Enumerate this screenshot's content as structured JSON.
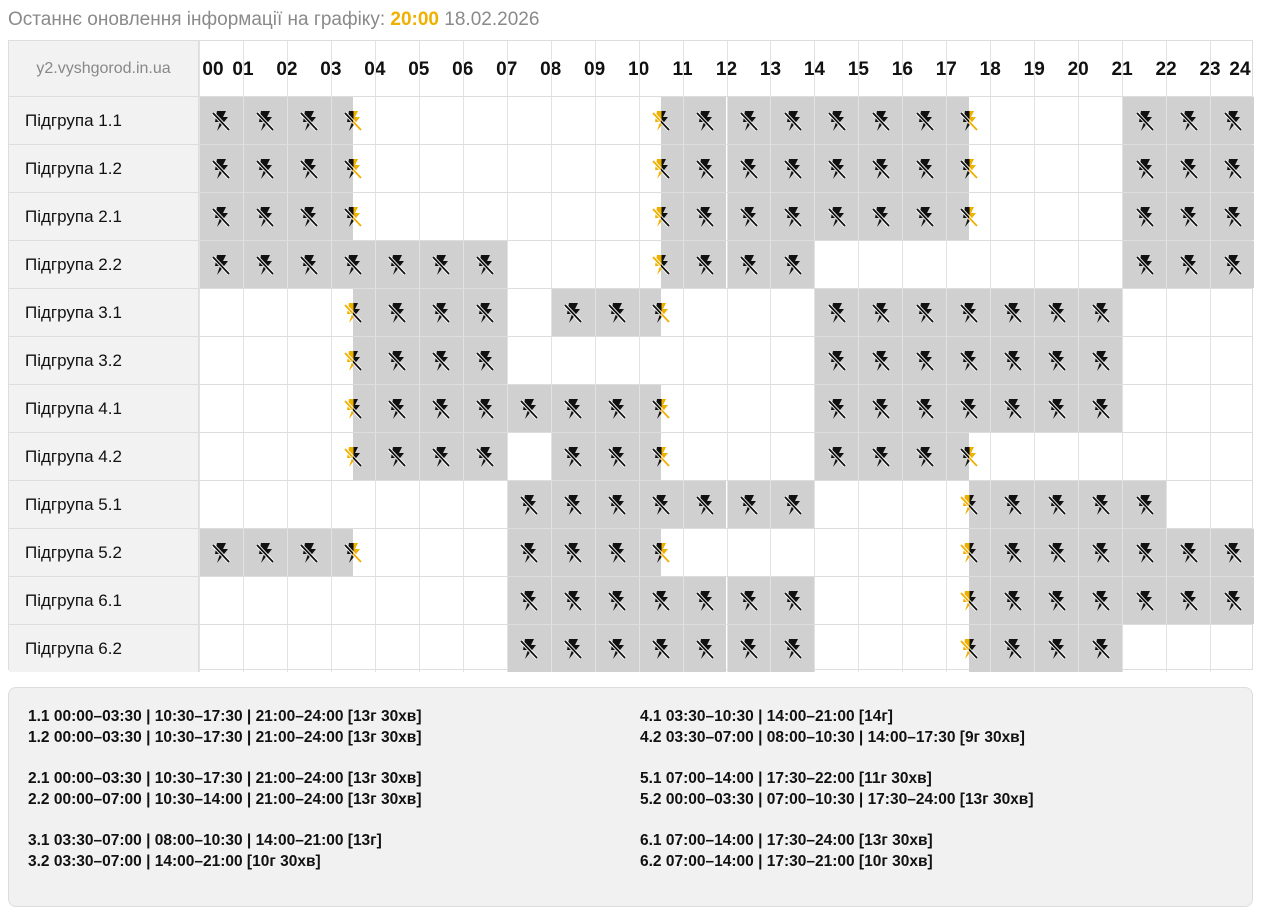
{
  "update": {
    "label": "Останнє оновлення інформації на графіку:",
    "time": "20:00",
    "date": "18.02.2026"
  },
  "site": "y2.vyshgorod.in.ua",
  "hours": [
    "00",
    "01",
    "02",
    "03",
    "04",
    "05",
    "06",
    "07",
    "08",
    "09",
    "10",
    "11",
    "12",
    "13",
    "14",
    "15",
    "16",
    "17",
    "18",
    "19",
    "20",
    "21",
    "22",
    "23",
    "24"
  ],
  "colors": {
    "off": "#d0d0d0",
    "accent": "#f0b000"
  },
  "icon": "power-off-bolt-icon",
  "groups": [
    {
      "label": "Підгрупа 1.1",
      "off": [
        [
          0,
          3.5
        ],
        [
          10.5,
          17.5
        ],
        [
          21,
          24
        ]
      ]
    },
    {
      "label": "Підгрупа 1.2",
      "off": [
        [
          0,
          3.5
        ],
        [
          10.5,
          17.5
        ],
        [
          21,
          24
        ]
      ]
    },
    {
      "label": "Підгрупа 2.1",
      "off": [
        [
          0,
          3.5
        ],
        [
          10.5,
          17.5
        ],
        [
          21,
          24
        ]
      ]
    },
    {
      "label": "Підгрупа 2.2",
      "off": [
        [
          0,
          7
        ],
        [
          10.5,
          14
        ],
        [
          21,
          24
        ]
      ]
    },
    {
      "label": "Підгрупа 3.1",
      "off": [
        [
          3.5,
          7
        ],
        [
          8,
          10.5
        ],
        [
          14,
          21
        ]
      ]
    },
    {
      "label": "Підгрупа 3.2",
      "off": [
        [
          3.5,
          7
        ],
        [
          14,
          21
        ]
      ]
    },
    {
      "label": "Підгрупа 4.1",
      "off": [
        [
          3.5,
          10.5
        ],
        [
          14,
          21
        ]
      ]
    },
    {
      "label": "Підгрупа 4.2",
      "off": [
        [
          3.5,
          7
        ],
        [
          8,
          10.5
        ],
        [
          14,
          17.5
        ]
      ]
    },
    {
      "label": "Підгрупа 5.1",
      "off": [
        [
          7,
          14
        ],
        [
          17.5,
          22
        ]
      ]
    },
    {
      "label": "Підгрупа 5.2",
      "off": [
        [
          0,
          3.5
        ],
        [
          7,
          10.5
        ],
        [
          17.5,
          24
        ]
      ]
    },
    {
      "label": "Підгрупа 6.1",
      "off": [
        [
          7,
          14
        ],
        [
          17.5,
          24
        ]
      ]
    },
    {
      "label": "Підгрупа 6.2",
      "off": [
        [
          7,
          14
        ],
        [
          17.5,
          21
        ]
      ]
    }
  ],
  "legend": {
    "left": [
      "1.1 00:00–03:30 | 10:30–17:30 | 21:00–24:00 [13г 30хв]",
      "1.2 00:00–03:30 | 10:30–17:30 | 21:00–24:00 [13г 30хв]",
      "2.1 00:00–03:30 | 10:30–17:30 | 21:00–24:00 [13г 30хв]",
      "2.2 00:00–07:00 | 10:30–14:00 | 21:00–24:00 [13г 30хв]",
      "3.1 03:30–07:00 | 08:00–10:30 | 14:00–21:00 [13г]",
      "3.2 03:30–07:00 | 14:00–21:00 [10г 30хв]"
    ],
    "right": [
      "4.1 03:30–10:30 | 14:00–21:00 [14г]",
      "4.2 03:30–07:00 | 08:00–10:30 | 14:00–17:30 [9г 30хв]",
      "5.1 07:00–14:00 | 17:30–22:00 [11г 30хв]",
      "5.2 00:00–03:30 | 07:00–10:30 | 17:30–24:00 [13г 30хв]",
      "6.1 07:00–14:00 | 17:30–24:00 [13г 30хв]",
      "6.2 07:00–14:00 | 17:30–21:00 [10г 30хв]"
    ]
  }
}
